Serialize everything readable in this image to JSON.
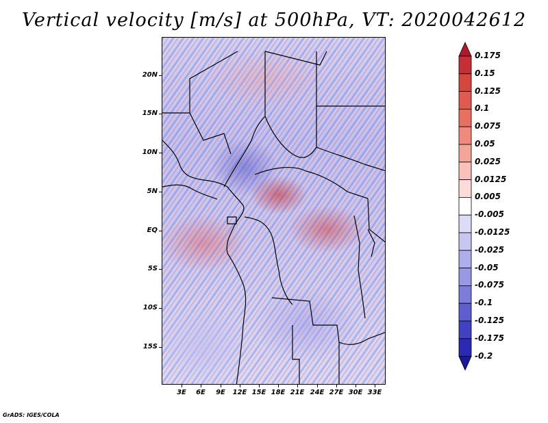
{
  "title": "Vertical velocity [m/s] at 500hPa, VT: 2020042612",
  "lat_labels": [
    "20N",
    "15N",
    "10N",
    "5N",
    "EQ",
    "5S",
    "10S",
    "15S"
  ],
  "lon_labels": [
    "3E",
    "6E",
    "9E",
    "12E",
    "15E",
    "18E",
    "21E",
    "24E",
    "27E",
    "30E",
    "33E"
  ],
  "colorbar": {
    "levels": [
      "0.175",
      "0.15",
      "0.125",
      "0.1",
      "0.075",
      "0.05",
      "0.025",
      "0.0125",
      "0.005",
      "-0.005",
      "-0.0125",
      "-0.025",
      "-0.05",
      "-0.075",
      "-0.1",
      "-0.125",
      "-0.175",
      "-0.2"
    ],
    "colors": [
      "#b2182b",
      "#c62f34",
      "#d6453e",
      "#e05a4f",
      "#e87060",
      "#ef8a7c",
      "#f4a59a",
      "#f8c1ba",
      "#fcdcd8",
      "#ffffff",
      "#dcdcf6",
      "#c6c6f0",
      "#aeaeea",
      "#9898e4",
      "#7c7cda",
      "#5e5ecf",
      "#4141c4",
      "#2a2ab4",
      "#1818a0"
    ]
  },
  "footer": "GrADS: IGES/COLA"
}
